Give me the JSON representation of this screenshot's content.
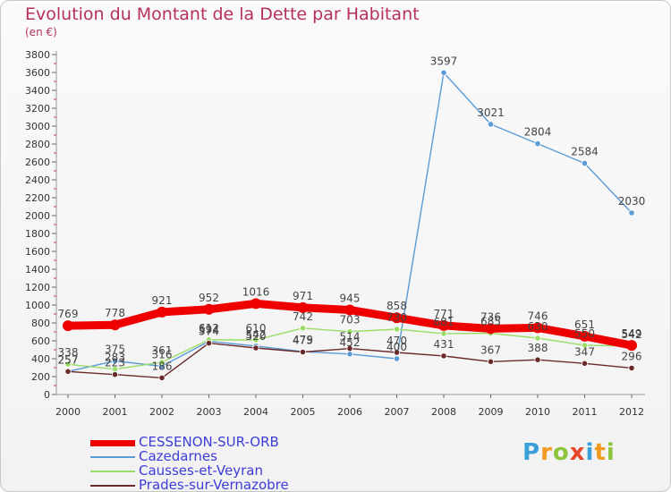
{
  "header": {
    "title": "Evolution du Montant de la Dette par Habitant",
    "unit": "(en €)"
  },
  "logo": {
    "text": "Proxiti"
  },
  "colors": {
    "background": "#f4f4f4",
    "title": "#b5305c",
    "legend_text": "#3d3dd6"
  },
  "chart_data": {
    "type": "line",
    "title": "Evolution du Montant de la Dette par Habitant",
    "ylabel": "(en €)",
    "x": [
      "2000",
      "2001",
      "2002",
      "2003",
      "2004",
      "2005",
      "2006",
      "2007",
      "2008",
      "2009",
      "2010",
      "2011",
      "2012"
    ],
    "ylim": [
      0,
      3800
    ],
    "yticks": [
      0,
      200,
      400,
      600,
      800,
      1000,
      1200,
      1400,
      1600,
      1800,
      2000,
      2200,
      2400,
      2600,
      2800,
      3000,
      3200,
      3400,
      3600,
      3800
    ],
    "grid": false,
    "legend_position": "bottom-left",
    "series": [
      {
        "name": "CESSENON-SUR-ORB",
        "color": "#ee0000",
        "values": [
          769,
          778,
          921,
          952,
          1016,
          971,
          945,
          858,
          771,
          736,
          746,
          651,
          549
        ]
      },
      {
        "name": "Cazedarnes",
        "color": "#5b9bd5",
        "values": [
          257,
          375,
          316,
          594,
          542,
          479,
          452,
          400,
          3597,
          3021,
          2804,
          2584,
          2030
        ]
      },
      {
        "name": "Causses-et-Veyran",
        "color": "#99dd66",
        "values": [
          338,
          283,
          361,
          612,
          610,
          742,
          703,
          730,
          681,
          685,
          630,
          550,
          542
        ]
      },
      {
        "name": "Prades-sur-Vernazobre",
        "color": "#6b2a2a",
        "values": [
          257,
          223,
          186,
          574,
          520,
          475,
          514,
          470,
          431,
          367,
          388,
          347,
          296
        ]
      }
    ],
    "labels": {
      "CESSENON-SUR-ORB": [
        "769",
        "778",
        "921",
        "952",
        "1016",
        "971",
        "945",
        "858",
        "771",
        "736",
        "746",
        "651",
        "549"
      ],
      "Cazedarnes": [
        "257",
        "375",
        "316",
        "594",
        "542",
        "479",
        "452",
        "400",
        "3597",
        "3021",
        "2804",
        "2584",
        "2030"
      ],
      "Causses-et-Veyran": [
        "338",
        "283",
        "361",
        "612",
        "610",
        "742",
        "703",
        "730",
        "681",
        "685",
        "630",
        "550",
        "542"
      ],
      "Prades-sur-Vernazobre": [
        "257",
        "223",
        "186",
        "574",
        "520",
        "475",
        "514",
        "470",
        "431",
        "367",
        "388",
        "347",
        "296"
      ]
    }
  }
}
